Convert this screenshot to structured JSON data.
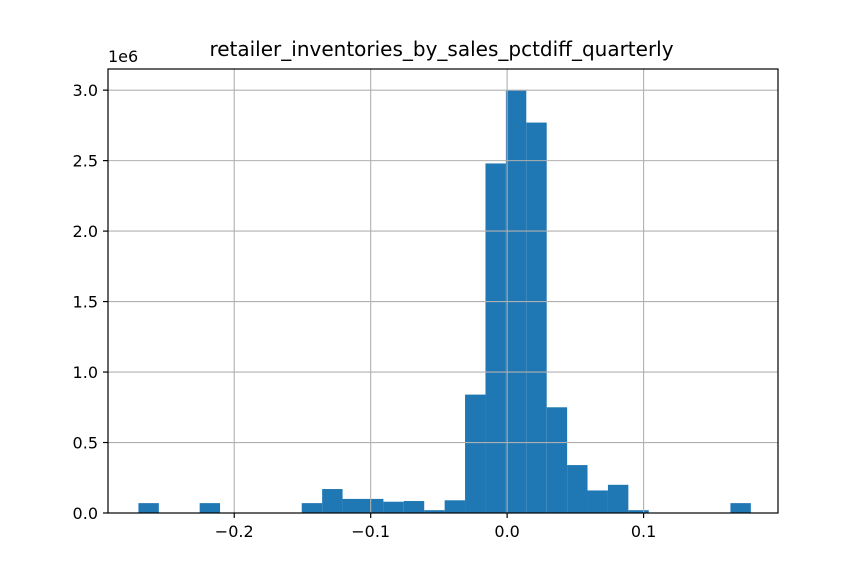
{
  "chart_data": {
    "type": "bar",
    "title": "retailer_inventories_by_sales_pctdiff_quarterly",
    "xlabel": "",
    "ylabel": "",
    "y_offset_label": "1e6",
    "grid": true,
    "xlim": [
      -0.2925,
      0.1985
    ],
    "ylim": [
      0,
      3.15
    ],
    "x_ticks": [
      {
        "value": -0.2,
        "label": "−0.2"
      },
      {
        "value": -0.1,
        "label": "−0.1"
      },
      {
        "value": 0.0,
        "label": "0.0"
      },
      {
        "value": 0.1,
        "label": "0.1"
      }
    ],
    "y_ticks": [
      {
        "value": 0.0,
        "label": "0.0"
      },
      {
        "value": 0.5,
        "label": "0.5"
      },
      {
        "value": 1.0,
        "label": "1.0"
      },
      {
        "value": 1.5,
        "label": "1.5"
      },
      {
        "value": 2.0,
        "label": "2.0"
      },
      {
        "value": 2.5,
        "label": "2.5"
      },
      {
        "value": 3.0,
        "label": "3.0"
      }
    ],
    "bin_start": -0.2702,
    "bin_width": 0.01496,
    "values": [
      0.07,
      0,
      0,
      0.07,
      0,
      0,
      0,
      0,
      0.07,
      0.17,
      0.1,
      0.1,
      0.08,
      0.085,
      0.02,
      0.09,
      0.84,
      2.48,
      3.0,
      2.77,
      0.75,
      0.34,
      0.16,
      0.2,
      0.02,
      0,
      0,
      0,
      0,
      0.07
    ],
    "bar_color": "#1f77b4"
  }
}
